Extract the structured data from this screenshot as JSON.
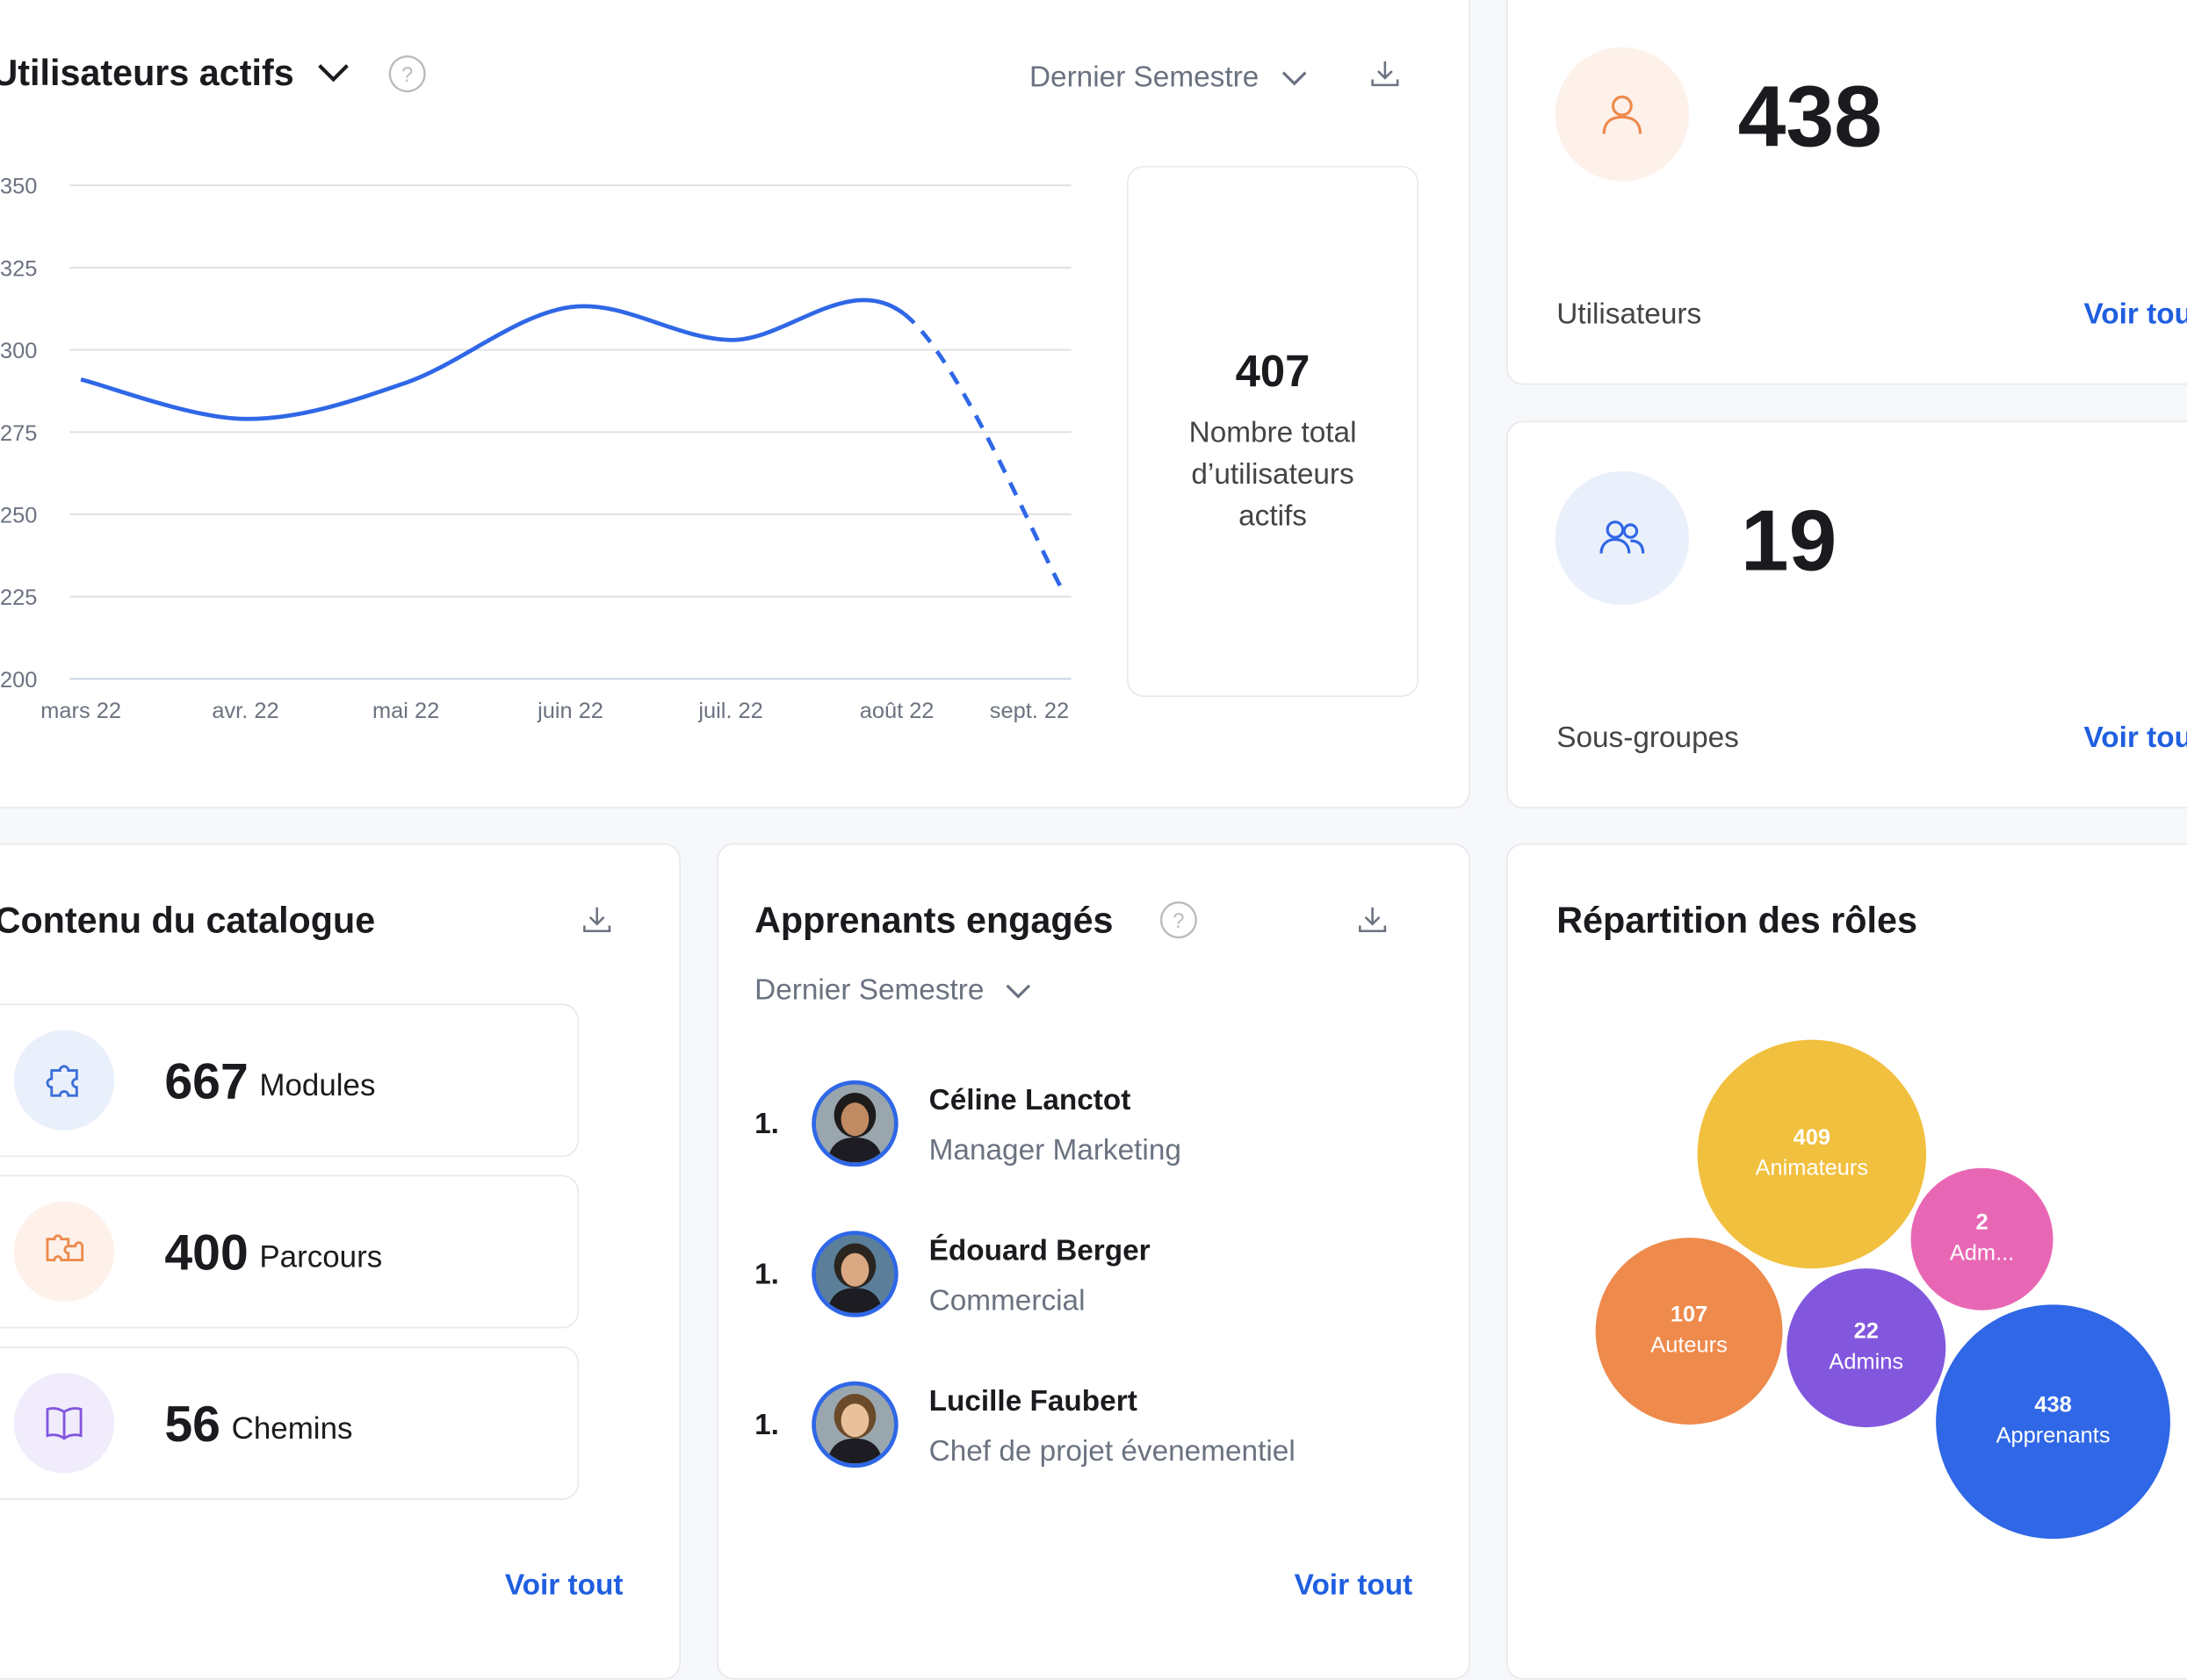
{
  "active_users": {
    "title": "Utilisateurs actifs",
    "period": "Dernier Semestre",
    "total_value": "407",
    "total_label_lines": [
      "Nombre total",
      "d’utilisateurs",
      "actifs"
    ]
  },
  "chart_data": {
    "type": "line",
    "title": "Utilisateurs actifs",
    "categories": [
      "mars 22",
      "avr. 22",
      "mai 22",
      "juin 22",
      "juil. 22",
      "août 22",
      "sept. 22"
    ],
    "series": [
      {
        "name": "Utilisateurs actifs",
        "values": [
          291,
          279,
          290,
          313,
          303,
          311,
          226
        ],
        "projected_from_index": 5
      }
    ],
    "yticks": [
      "350",
      "325",
      "300",
      "275",
      "250",
      "225",
      "200"
    ],
    "ylim": [
      200,
      350
    ],
    "grid": true,
    "color": "#2f67e6"
  },
  "users_card": {
    "value": "438",
    "label": "Utilisateurs",
    "link": "Voir tout"
  },
  "subgroups_card": {
    "value": "19",
    "label": "Sous-groupes",
    "link": "Voir tout"
  },
  "catalog": {
    "title": "Contenu du catalogue",
    "items": [
      {
        "value": "667",
        "label": "Modules",
        "icon": "puzzle-icon",
        "color": "#3b6fd8",
        "bg": "#eaf0fb"
      },
      {
        "value": "400",
        "label": "Parcours",
        "icon": "puzzles-icon",
        "color": "#ee8a4c",
        "bg": "#fdf1ea"
      },
      {
        "value": "56",
        "label": "Chemins",
        "icon": "book-icon",
        "color": "#8257de",
        "bg": "#f1ecfb"
      }
    ],
    "link": "Voir tout"
  },
  "engaged": {
    "title": "Apprenants engagés",
    "period": "Dernier Semestre",
    "learners": [
      {
        "rank": "1.",
        "name": "Céline Lanctot",
        "role": "Manager Marketing"
      },
      {
        "rank": "1.",
        "name": "Édouard Berger",
        "role": "Commercial"
      },
      {
        "rank": "1.",
        "name": "Lucille Faubert",
        "role": "Chef de projet évenementiel"
      }
    ],
    "link": "Voir tout"
  },
  "roles": {
    "title": "Répartition des rôles",
    "chart_data": {
      "type": "bubble",
      "items": [
        {
          "value": "409",
          "label": "Animateurs",
          "color": "#f2c03f"
        },
        {
          "value": "2",
          "label": "Adm...",
          "color": "#e867b5"
        },
        {
          "value": "107",
          "label": "Auteurs",
          "color": "#ee8a4c"
        },
        {
          "value": "22",
          "label": "Admins",
          "color": "#8257de"
        },
        {
          "value": "438",
          "label": "Apprenants",
          "color": "#2f67e6"
        }
      ]
    }
  }
}
